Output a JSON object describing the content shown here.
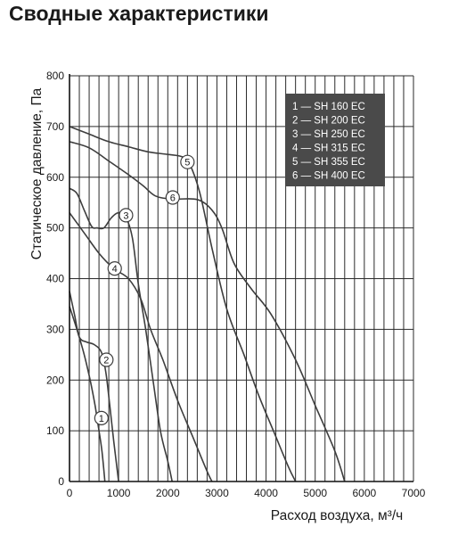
{
  "page": {
    "title": "Сводные характеристики"
  },
  "chart_data": {
    "type": "line",
    "title": "",
    "xlabel": "Расход воздуха, м³/ч",
    "ylabel": "Статическое давление, Па",
    "xlim": [
      0,
      7000
    ],
    "ylim": [
      0,
      800
    ],
    "x_ticks": [
      "0",
      "1000",
      "2000",
      "3000",
      "4000",
      "5000",
      "6000",
      "7000"
    ],
    "y_ticks": [
      "0",
      "100",
      "200",
      "300",
      "400",
      "500",
      "600",
      "700",
      "800"
    ],
    "grid": true,
    "legend": {
      "placement": "top-right",
      "entries": [
        "1 — SH 160 EC",
        "2 — SH 200 EC",
        "3 — SH 250 EC",
        "4 — SH 315 EC",
        "5 — SH 355 EC",
        "6 — SH 400 EC"
      ]
    },
    "series": [
      {
        "label": "1",
        "label_at": [
          650,
          125
        ],
        "points": [
          [
            0,
            345
          ],
          [
            150,
            300
          ],
          [
            300,
            250
          ],
          [
            420,
            200
          ],
          [
            520,
            150
          ],
          [
            600,
            100
          ],
          [
            660,
            60
          ],
          [
            720,
            0
          ]
        ]
      },
      {
        "label": "2",
        "label_at": [
          750,
          240
        ],
        "points": [
          [
            0,
            375
          ],
          [
            100,
            330
          ],
          [
            200,
            285
          ],
          [
            350,
            275
          ],
          [
            500,
            270
          ],
          [
            650,
            255
          ],
          [
            740,
            215
          ],
          [
            820,
            150
          ],
          [
            900,
            80
          ],
          [
            1000,
            0
          ]
        ]
      },
      {
        "label": "3",
        "label_at": [
          1150,
          525
        ],
        "points": [
          [
            0,
            578
          ],
          [
            150,
            568
          ],
          [
            300,
            535
          ],
          [
            450,
            503
          ],
          [
            560,
            500
          ],
          [
            700,
            500
          ],
          [
            850,
            520
          ],
          [
            1000,
            530
          ],
          [
            1150,
            520
          ],
          [
            1280,
            480
          ],
          [
            1400,
            390
          ],
          [
            1550,
            300
          ],
          [
            1700,
            200
          ],
          [
            1850,
            100
          ],
          [
            2000,
            40
          ],
          [
            2090,
            0
          ]
        ]
      },
      {
        "label": "4",
        "label_at": [
          920,
          420
        ],
        "points": [
          [
            0,
            530
          ],
          [
            300,
            490
          ],
          [
            600,
            450
          ],
          [
            900,
            420
          ],
          [
            1200,
            400
          ],
          [
            1450,
            360
          ],
          [
            1650,
            300
          ],
          [
            1900,
            240
          ],
          [
            2200,
            160
          ],
          [
            2500,
            90
          ],
          [
            2800,
            20
          ],
          [
            2900,
            0
          ]
        ]
      },
      {
        "label": "5",
        "label_at": [
          2400,
          630
        ],
        "points": [
          [
            0,
            700
          ],
          [
            400,
            685
          ],
          [
            800,
            670
          ],
          [
            1200,
            660
          ],
          [
            1600,
            650
          ],
          [
            2000,
            645
          ],
          [
            2300,
            640
          ],
          [
            2450,
            625
          ],
          [
            2650,
            570
          ],
          [
            2900,
            460
          ],
          [
            3200,
            340
          ],
          [
            3550,
            250
          ],
          [
            3850,
            170
          ],
          [
            4150,
            100
          ],
          [
            4450,
            30
          ],
          [
            4600,
            0
          ]
        ]
      },
      {
        "label": "6",
        "label_at": [
          2100,
          560
        ],
        "points": [
          [
            0,
            670
          ],
          [
            400,
            658
          ],
          [
            800,
            632
          ],
          [
            1200,
            605
          ],
          [
            1500,
            583
          ],
          [
            1750,
            563
          ],
          [
            2100,
            557
          ],
          [
            2600,
            556
          ],
          [
            2900,
            535
          ],
          [
            3100,
            500
          ],
          [
            3350,
            430
          ],
          [
            3700,
            380
          ],
          [
            4100,
            330
          ],
          [
            4600,
            240
          ],
          [
            5000,
            150
          ],
          [
            5400,
            60
          ],
          [
            5600,
            0
          ]
        ]
      }
    ]
  }
}
